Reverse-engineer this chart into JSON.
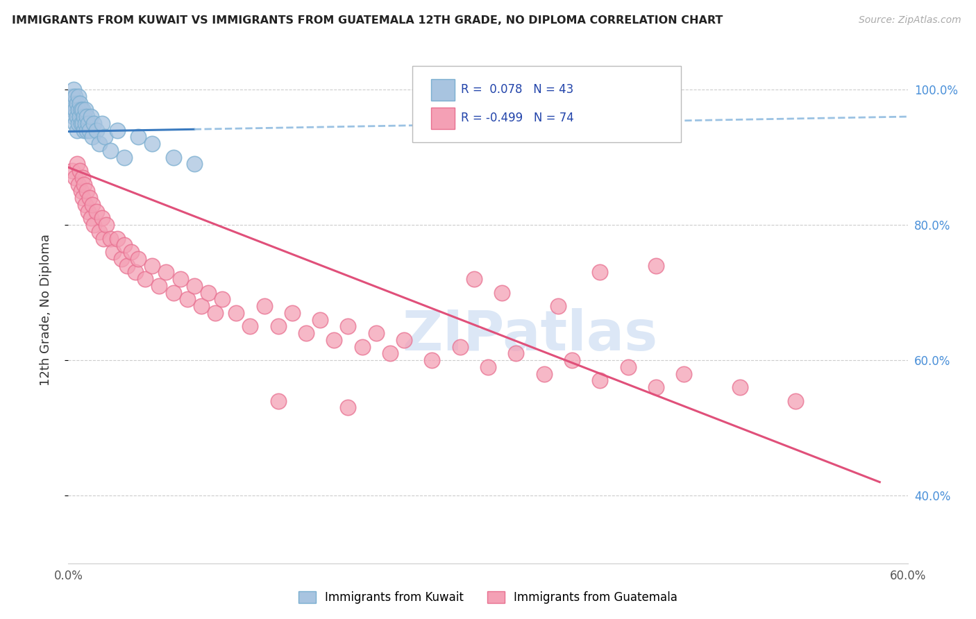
{
  "title": "IMMIGRANTS FROM KUWAIT VS IMMIGRANTS FROM GUATEMALA 12TH GRADE, NO DIPLOMA CORRELATION CHART",
  "source": "Source: ZipAtlas.com",
  "ylabel": "12th Grade, No Diploma",
  "xlim": [
    0.0,
    0.6
  ],
  "ylim": [
    0.3,
    1.05
  ],
  "xticks": [
    0.0,
    0.1,
    0.2,
    0.3,
    0.4,
    0.5,
    0.6
  ],
  "xticklabels": [
    "0.0%",
    "",
    "",
    "",
    "",
    "",
    "60.0%"
  ],
  "yticks": [
    0.4,
    0.6,
    0.8,
    1.0
  ],
  "yticklabels": [
    "40.0%",
    "60.0%",
    "80.0%",
    "100.0%"
  ],
  "kuwait_R": 0.078,
  "kuwait_N": 43,
  "guatemala_R": -0.499,
  "guatemala_N": 74,
  "kuwait_color": "#a8c4e0",
  "kuwait_edge_color": "#7aaed0",
  "guatemala_color": "#f4a0b5",
  "guatemala_edge_color": "#e87090",
  "kuwait_line_color": "#3a7abf",
  "kuwait_line_color_dash": "#90bce0",
  "guatemala_line_color": "#e0507a",
  "watermark_color": "#c5d8f0",
  "legend_entries": [
    "Immigrants from Kuwait",
    "Immigrants from Guatemala"
  ],
  "kuwait_x": [
    0.002,
    0.003,
    0.003,
    0.004,
    0.004,
    0.004,
    0.005,
    0.005,
    0.005,
    0.006,
    0.006,
    0.006,
    0.007,
    0.007,
    0.007,
    0.008,
    0.008,
    0.009,
    0.009,
    0.01,
    0.01,
    0.011,
    0.011,
    0.012,
    0.012,
    0.013,
    0.013,
    0.014,
    0.015,
    0.016,
    0.017,
    0.018,
    0.02,
    0.022,
    0.024,
    0.026,
    0.03,
    0.035,
    0.04,
    0.05,
    0.06,
    0.075,
    0.09
  ],
  "kuwait_y": [
    0.98,
    0.99,
    0.97,
    1.0,
    0.98,
    0.96,
    0.99,
    0.97,
    0.95,
    0.98,
    0.96,
    0.94,
    0.99,
    0.97,
    0.95,
    0.98,
    0.96,
    0.97,
    0.95,
    0.97,
    0.95,
    0.96,
    0.94,
    0.97,
    0.95,
    0.96,
    0.94,
    0.95,
    0.94,
    0.96,
    0.93,
    0.95,
    0.94,
    0.92,
    0.95,
    0.93,
    0.91,
    0.94,
    0.9,
    0.93,
    0.92,
    0.9,
    0.89
  ],
  "guatemala_x": [
    0.003,
    0.005,
    0.006,
    0.007,
    0.008,
    0.009,
    0.01,
    0.01,
    0.011,
    0.012,
    0.013,
    0.014,
    0.015,
    0.016,
    0.017,
    0.018,
    0.02,
    0.022,
    0.024,
    0.025,
    0.027,
    0.03,
    0.032,
    0.035,
    0.038,
    0.04,
    0.042,
    0.045,
    0.048,
    0.05,
    0.055,
    0.06,
    0.065,
    0.07,
    0.075,
    0.08,
    0.085,
    0.09,
    0.095,
    0.1,
    0.105,
    0.11,
    0.12,
    0.13,
    0.14,
    0.15,
    0.16,
    0.17,
    0.18,
    0.19,
    0.2,
    0.21,
    0.22,
    0.23,
    0.24,
    0.26,
    0.28,
    0.3,
    0.32,
    0.34,
    0.36,
    0.38,
    0.4,
    0.42,
    0.44,
    0.29,
    0.31,
    0.35,
    0.38,
    0.42,
    0.15,
    0.2,
    0.48,
    0.52
  ],
  "guatemala_y": [
    0.88,
    0.87,
    0.89,
    0.86,
    0.88,
    0.85,
    0.87,
    0.84,
    0.86,
    0.83,
    0.85,
    0.82,
    0.84,
    0.81,
    0.83,
    0.8,
    0.82,
    0.79,
    0.81,
    0.78,
    0.8,
    0.78,
    0.76,
    0.78,
    0.75,
    0.77,
    0.74,
    0.76,
    0.73,
    0.75,
    0.72,
    0.74,
    0.71,
    0.73,
    0.7,
    0.72,
    0.69,
    0.71,
    0.68,
    0.7,
    0.67,
    0.69,
    0.67,
    0.65,
    0.68,
    0.65,
    0.67,
    0.64,
    0.66,
    0.63,
    0.65,
    0.62,
    0.64,
    0.61,
    0.63,
    0.6,
    0.62,
    0.59,
    0.61,
    0.58,
    0.6,
    0.57,
    0.59,
    0.56,
    0.58,
    0.72,
    0.7,
    0.68,
    0.73,
    0.74,
    0.54,
    0.53,
    0.56,
    0.54
  ],
  "kuwait_line_x0": 0.0,
  "kuwait_line_y0": 0.938,
  "kuwait_line_x1": 0.6,
  "kuwait_line_y1": 0.96,
  "gt_line_x0": 0.0,
  "gt_line_y0": 0.885,
  "gt_line_x1": 0.58,
  "gt_line_y1": 0.42
}
